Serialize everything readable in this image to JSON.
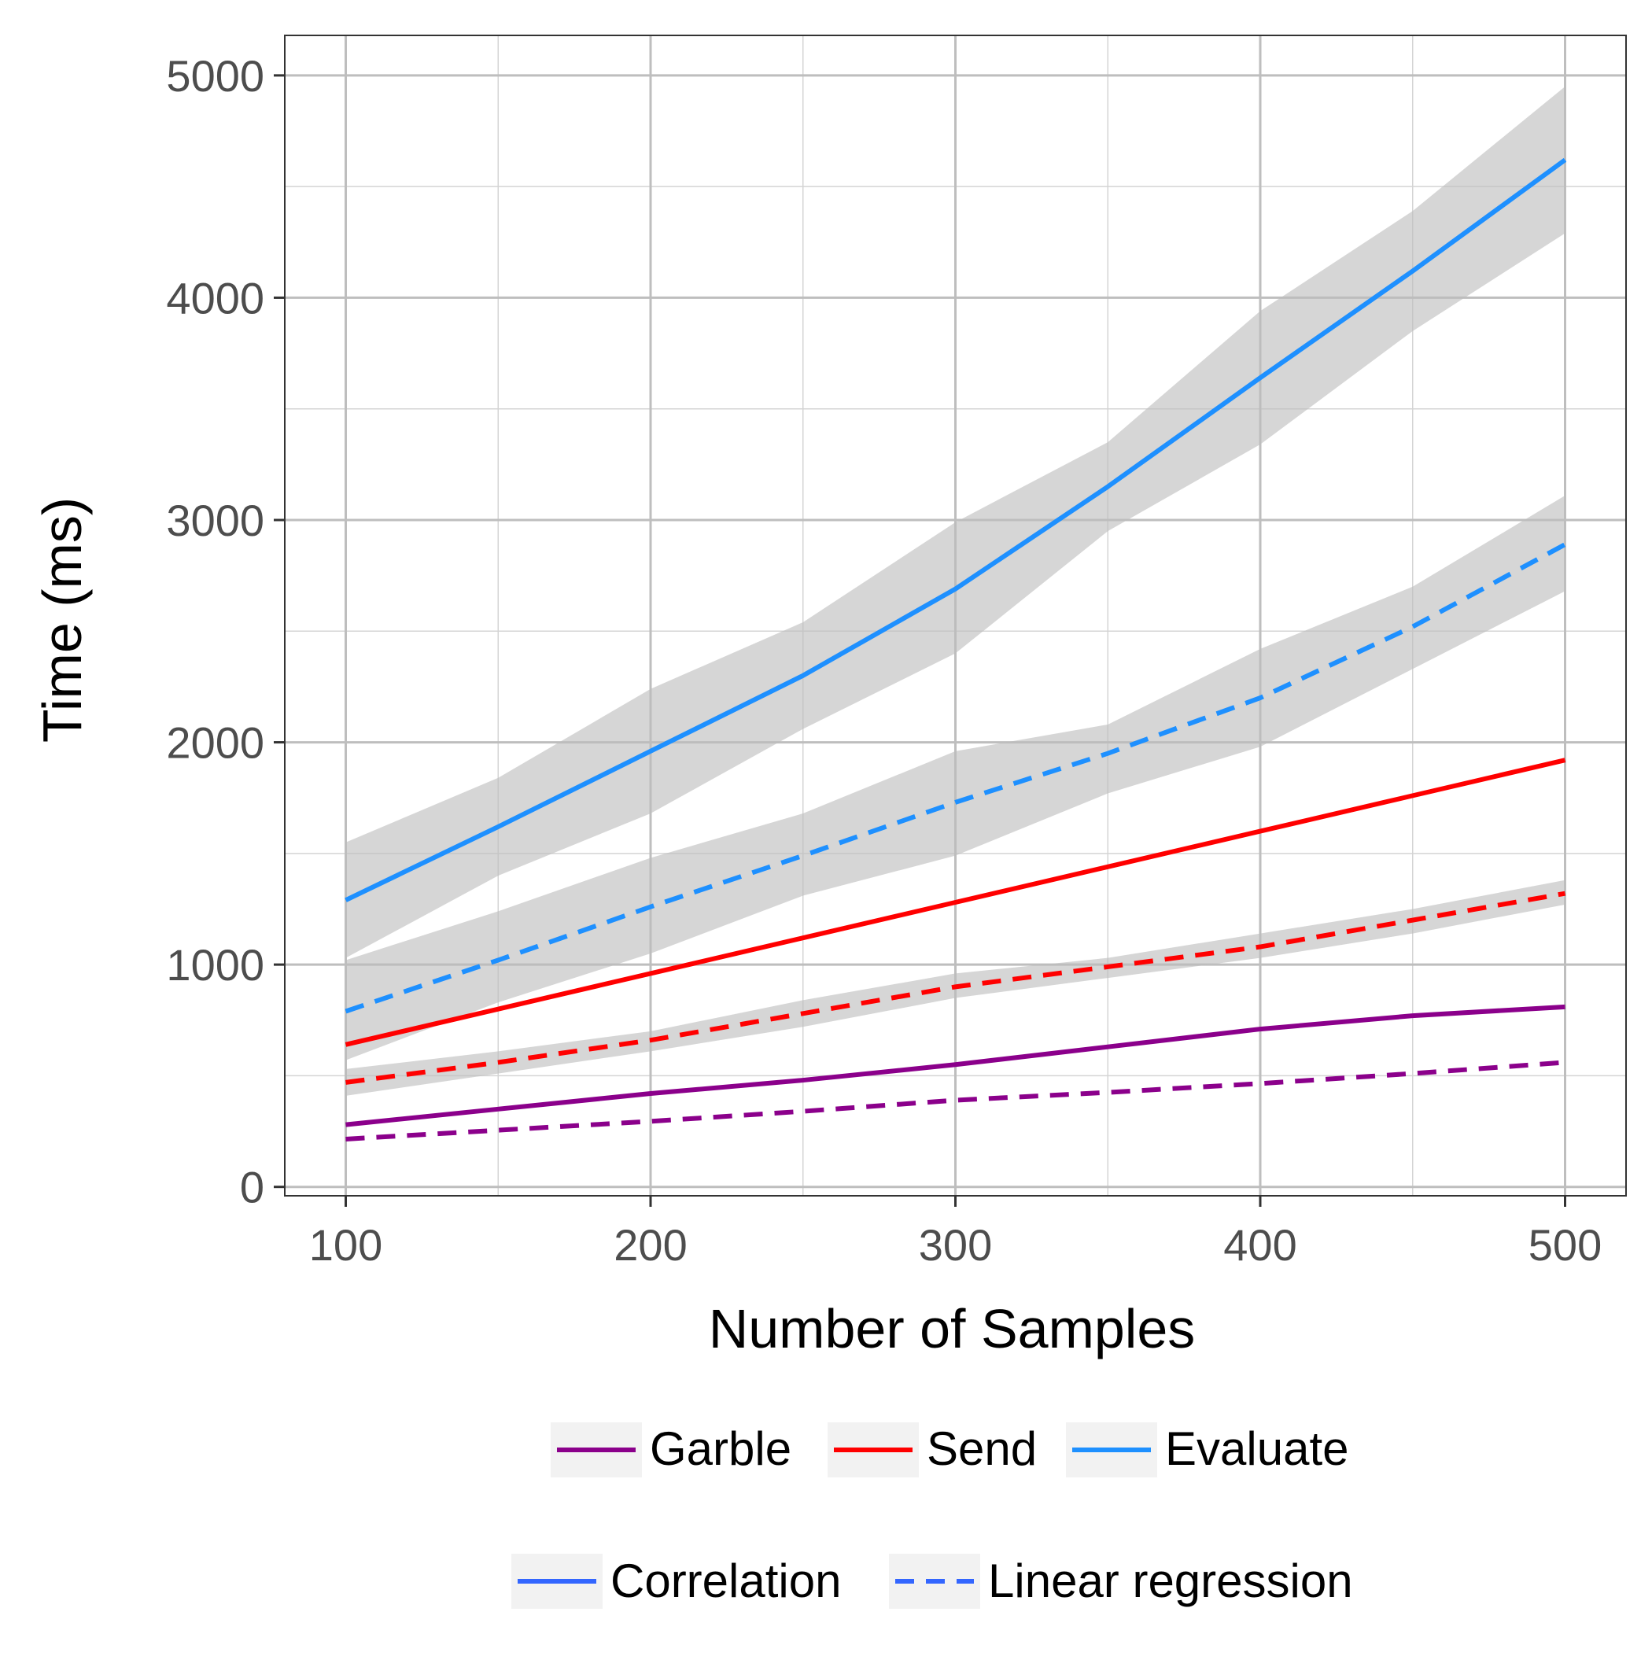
{
  "chart_data": {
    "type": "line",
    "xlabel": "Number of Samples",
    "ylabel": "Time (ms)",
    "xlim": [
      80,
      520
    ],
    "ylim": [
      -40,
      5180
    ],
    "x_ticks": [
      100,
      200,
      300,
      400,
      500
    ],
    "y_ticks": [
      0,
      1000,
      2000,
      3000,
      4000,
      5000
    ],
    "x_tick_labels": [
      "100",
      "200",
      "300",
      "400",
      "500"
    ],
    "y_tick_labels": [
      "0",
      "1000",
      "2000",
      "3000",
      "4000",
      "5000"
    ],
    "grid": true,
    "legend_position": "bottom",
    "legend": {
      "color": [
        {
          "label": "Garble",
          "color": "#8B008B"
        },
        {
          "label": "Send",
          "color": "#FF0000"
        },
        {
          "label": "Evaluate",
          "color": "#1E90FF"
        }
      ],
      "linetype": [
        {
          "label": "Correlation",
          "style": "solid",
          "color": "#3366FF"
        },
        {
          "label": "Linear regression",
          "style": "dashed",
          "color": "#3366FF"
        }
      ]
    },
    "x": [
      100,
      150,
      200,
      250,
      300,
      350,
      400,
      450,
      500
    ],
    "series": [
      {
        "color_group": "Evaluate",
        "linetype": "Correlation",
        "color": "#1E90FF",
        "dashed": false,
        "values": [
          1290,
          1620,
          1960,
          2300,
          2690,
          3150,
          3640,
          4120,
          4620
        ],
        "band_lower": [
          1030,
          1400,
          1680,
          2060,
          2400,
          2950,
          3340,
          3850,
          4290
        ],
        "band_upper": [
          1550,
          1840,
          2240,
          2540,
          2990,
          3350,
          3940,
          4390,
          4950
        ]
      },
      {
        "color_group": "Evaluate",
        "linetype": "Linear regression",
        "color": "#1E90FF",
        "dashed": true,
        "values": [
          790,
          1020,
          1260,
          1490,
          1730,
          1950,
          2200,
          2520,
          2890
        ],
        "band_lower": [
          570,
          830,
          1050,
          1310,
          1490,
          1770,
          1980,
          2330,
          2680
        ],
        "band_upper": [
          1020,
          1240,
          1480,
          1680,
          1960,
          2080,
          2420,
          2700,
          3110
        ]
      },
      {
        "color_group": "Send",
        "linetype": "Correlation",
        "color": "#FF0000",
        "dashed": false,
        "values": [
          640,
          800,
          960,
          1120,
          1280,
          1440,
          1600,
          1760,
          1920
        ]
      },
      {
        "color_group": "Send",
        "linetype": "Linear regression",
        "color": "#FF0000",
        "dashed": true,
        "values": [
          470,
          560,
          660,
          780,
          900,
          990,
          1080,
          1200,
          1320
        ],
        "band_lower": [
          410,
          510,
          610,
          720,
          850,
          940,
          1030,
          1140,
          1270
        ],
        "band_upper": [
          530,
          610,
          700,
          840,
          960,
          1030,
          1140,
          1250,
          1380
        ]
      },
      {
        "color_group": "Garble",
        "linetype": "Correlation",
        "color": "#8B008B",
        "dashed": false,
        "values": [
          280,
          350,
          420,
          480,
          550,
          630,
          710,
          770,
          810
        ]
      },
      {
        "color_group": "Garble",
        "linetype": "Linear regression",
        "color": "#8B008B",
        "dashed": true,
        "values": [
          215,
          255,
          295,
          340,
          390,
          425,
          465,
          510,
          560
        ]
      }
    ]
  }
}
